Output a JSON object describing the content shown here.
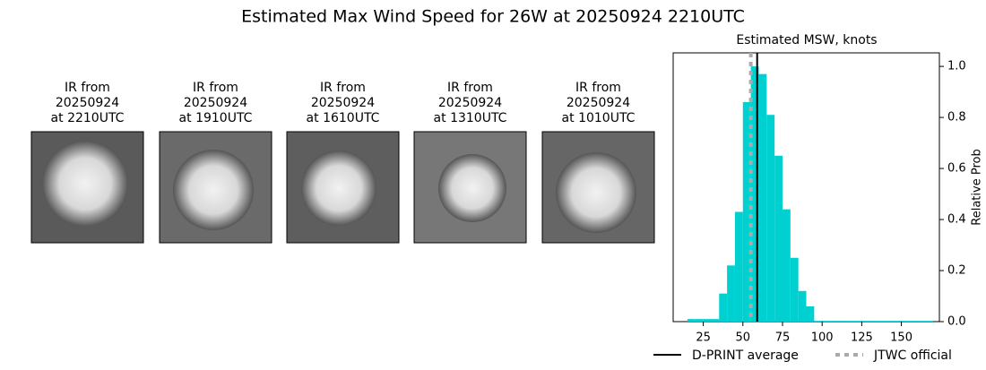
{
  "title": "Estimated Max Wind Speed for 26W at 20250924 2210UTC",
  "panels": [
    {
      "lines": [
        "IR from",
        "20250924",
        "at 2210UTC"
      ]
    },
    {
      "lines": [
        "IR from",
        "20250924",
        "at 1910UTC"
      ]
    },
    {
      "lines": [
        "IR from",
        "20250924",
        "at 1610UTC"
      ]
    },
    {
      "lines": [
        "IR from",
        "20250924",
        "at 1310UTC"
      ]
    },
    {
      "lines": [
        "IR from",
        "20250924",
        "at 1010UTC"
      ]
    }
  ],
  "chart_data": {
    "type": "histogram",
    "title": "Estimated MSW, knots",
    "y_label": "Relative Prob",
    "bins": [
      15,
      20,
      25,
      30,
      35,
      40,
      45,
      50,
      55,
      60,
      65,
      70,
      75,
      80,
      85,
      90,
      95,
      100,
      105,
      110,
      115,
      120,
      125,
      130,
      135,
      140,
      145,
      150,
      155,
      160,
      165,
      170
    ],
    "values": [
      0.01,
      0.01,
      0.01,
      0.01,
      0.11,
      0.22,
      0.43,
      0.86,
      1.0,
      0.97,
      0.81,
      0.65,
      0.44,
      0.25,
      0.12,
      0.06,
      0.003,
      0.003,
      0.003,
      0.003,
      0.003,
      0.003,
      0.003,
      0.003,
      0.003,
      0.003,
      0.003,
      0.003,
      0.003,
      0.003,
      0.003
    ],
    "color": "#00d0d0",
    "lines": [
      {
        "name": "D-PRINT average",
        "value": 59,
        "color": "#000000",
        "style": "solid"
      },
      {
        "name": "JTWC official",
        "value": 55,
        "color": "#aaaaaa",
        "style": "dotted"
      }
    ],
    "xlim": [
      6,
      174
    ],
    "ylim": [
      0,
      1.053
    ],
    "xticks": [
      25,
      50,
      75,
      100,
      125,
      150
    ],
    "yticks": [
      {
        "value": 0,
        "label": "0.0"
      },
      0.2,
      0.4,
      0.6,
      0.8,
      {
        "value": 1,
        "label": "1.0"
      }
    ]
  }
}
